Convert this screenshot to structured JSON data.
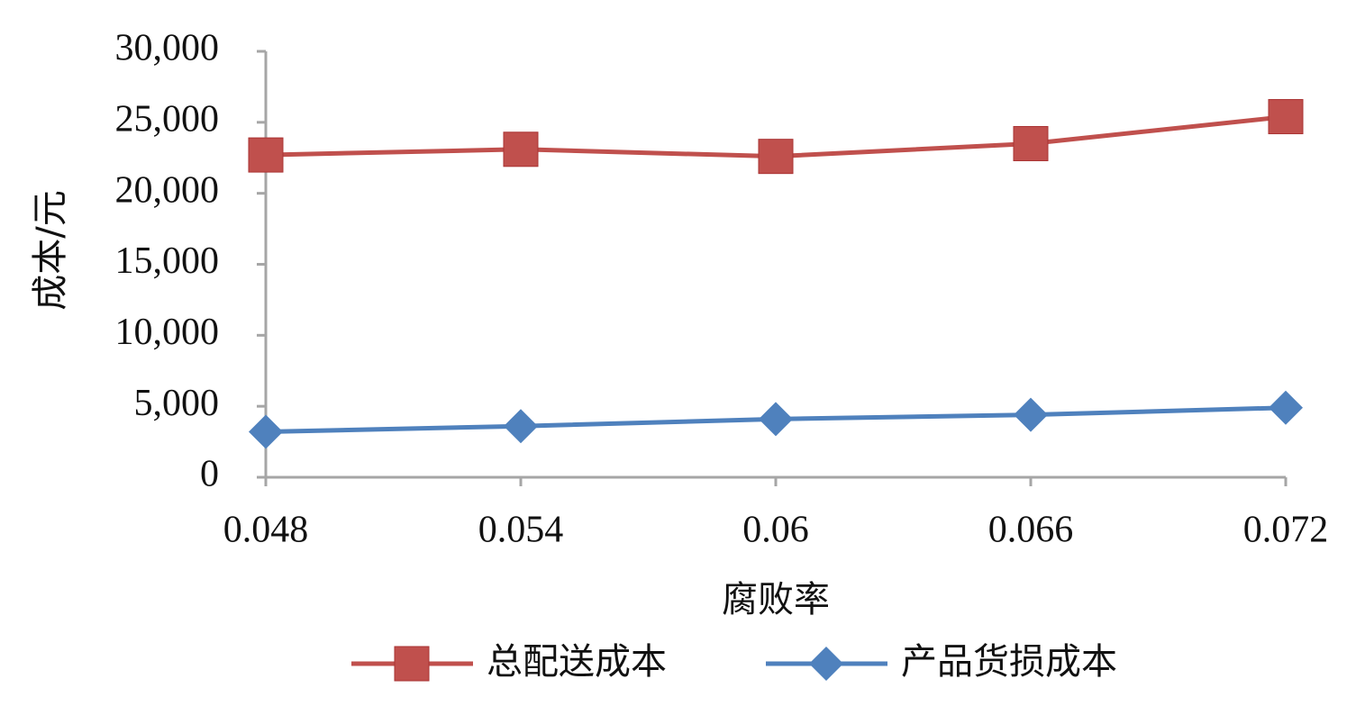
{
  "chart_data": {
    "type": "line",
    "x_label": "腐败率",
    "y_label": "成本/元",
    "categories": [
      "0.048",
      "0.054",
      "0.06",
      "0.066",
      "0.072"
    ],
    "series": [
      {
        "name": "总配送成本",
        "color": "#c0504d",
        "marker": "square",
        "values": [
          22700,
          23100,
          22600,
          23500,
          25400
        ]
      },
      {
        "name": "产品货损成本",
        "color": "#4f81bd",
        "marker": "diamond",
        "values": [
          3200,
          3600,
          4100,
          4400,
          4900
        ]
      }
    ],
    "ylim": [
      0,
      30000
    ],
    "yticks": [
      0,
      {
        "value": 5000,
        "label": "5,000"
      },
      {
        "value": 10000,
        "label": "10,000"
      },
      {
        "value": 15000,
        "label": "15,000"
      },
      {
        "value": 20000,
        "label": "20,000"
      },
      {
        "value": 25000,
        "label": "25,000"
      },
      {
        "value": 30000,
        "label": "30,000"
      }
    ],
    "grid": false,
    "legend": "bottom"
  }
}
